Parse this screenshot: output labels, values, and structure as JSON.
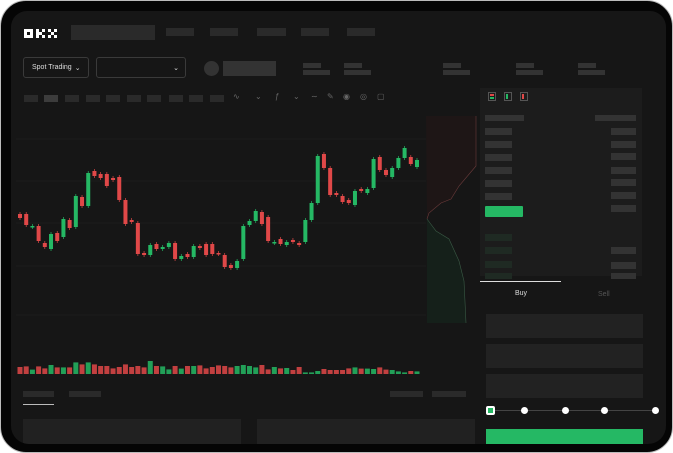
{
  "brand": {
    "logo": "OKX",
    "accent": "#25b864",
    "down": "#e04848"
  },
  "toolbar": {
    "market_select": "Spot Trading",
    "market_select_icon": "chevron-down-icon",
    "pair_select_icon": "chevron-down-icon"
  },
  "chart_tools": [
    "line-icon",
    "line-icon",
    "indicator-icon",
    "dropdown-icon",
    "wave-icon",
    "pencil-icon",
    "camera-icon",
    "settings-icon",
    "fullscreen-icon"
  ],
  "orderbook": {
    "view_icons": [
      "orderbook-both-icon",
      "orderbook-buy-icon",
      "orderbook-sell-icon"
    ]
  },
  "trade": {
    "tabs": [
      {
        "label": "Buy",
        "active": true
      },
      {
        "label": "Sell",
        "active": false
      }
    ],
    "slider_percent": 0,
    "slider_steps": 5
  },
  "candles": [
    [
      97,
      93
    ],
    [
      97,
      86
    ],
    [
      84,
      85
    ],
    [
      85,
      70
    ],
    [
      68,
      64
    ],
    [
      62,
      77
    ],
    [
      78,
      70
    ],
    [
      74,
      92
    ],
    [
      91,
      83
    ],
    [
      84,
      115
    ],
    [
      114,
      105
    ],
    [
      105,
      138
    ],
    [
      140,
      135
    ],
    [
      137,
      133
    ],
    [
      137,
      125
    ],
    [
      133,
      131
    ],
    [
      134,
      111
    ],
    [
      111,
      87
    ],
    [
      91,
      89
    ],
    [
      88,
      57
    ],
    [
      58,
      56
    ],
    [
      56,
      66
    ],
    [
      67,
      62
    ],
    [
      62,
      64
    ],
    [
      64,
      68
    ],
    [
      68,
      52
    ],
    [
      52,
      55
    ],
    [
      57,
      54
    ],
    [
      54,
      65
    ],
    [
      65,
      63
    ],
    [
      67,
      56
    ],
    [
      67,
      57
    ],
    [
      58,
      57
    ],
    [
      56,
      44
    ],
    [
      46,
      43
    ],
    [
      43,
      50
    ],
    [
      52,
      85
    ],
    [
      86,
      90
    ],
    [
      90,
      100
    ],
    [
      99,
      87
    ],
    [
      94,
      70
    ],
    [
      68,
      69
    ],
    [
      72,
      67
    ],
    [
      66,
      69
    ],
    [
      71,
      69
    ],
    [
      68,
      66
    ],
    [
      69,
      91
    ],
    [
      91,
      108
    ],
    [
      108,
      155
    ],
    [
      157,
      143
    ],
    [
      143,
      116
    ],
    [
      118,
      116
    ],
    [
      115,
      109
    ],
    [
      111,
      108
    ],
    [
      106,
      120
    ],
    [
      122,
      120
    ],
    [
      118,
      122
    ],
    [
      123,
      152
    ],
    [
      154,
      141
    ],
    [
      141,
      136
    ],
    [
      134,
      143
    ],
    [
      143,
      153
    ],
    [
      153,
      163
    ],
    [
      154,
      147
    ],
    [
      144,
      151
    ]
  ],
  "volumes": [
    35,
    38,
    22,
    38,
    28,
    45,
    33,
    33,
    33,
    58,
    48,
    58,
    48,
    40,
    40,
    28,
    35,
    48,
    35,
    40,
    33,
    65,
    40,
    38,
    23,
    40,
    27,
    40,
    40,
    43,
    28,
    35,
    43,
    40,
    33,
    40,
    45,
    40,
    33,
    45,
    23,
    35,
    28,
    30,
    20,
    35,
    8,
    8,
    15,
    25,
    20,
    20,
    20,
    28,
    33,
    27,
    27,
    25,
    33,
    22,
    20,
    13,
    8,
    15,
    13
  ]
}
